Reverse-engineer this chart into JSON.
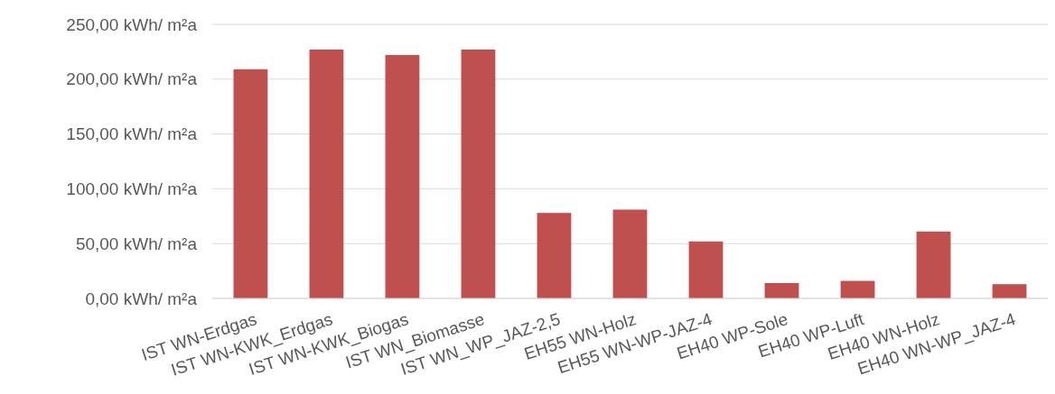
{
  "chart_data": {
    "type": "bar",
    "categories": [
      "IST WN-Erdgas",
      "IST WN-KWK_Erdgas",
      "IST WN-KWK_Biogas",
      "IST WN_Biomasse",
      "IST WN_WP_JAZ-2,5",
      "EH55 WN-Holz",
      "EH55 WN-WP-JAZ-4",
      "EH40 WP-Sole",
      "EH40 WP-Luft",
      "EH40 WN-Holz",
      "EH40 WN-WP_JAZ-4"
    ],
    "series": [
      {
        "color": "#c0504d",
        "values": [
          209,
          227,
          222,
          227,
          78,
          81,
          52,
          14,
          16,
          61,
          13
        ]
      }
    ],
    "ylim": [
      0,
      250
    ],
    "yticks": [
      {
        "value": 0,
        "label": "0,00 kWh/ m²a"
      },
      {
        "value": 50,
        "label": "50,00 kWh/ m²a"
      },
      {
        "value": 100,
        "label": "100,00 kWh/ m²a"
      },
      {
        "value": 150,
        "label": "150,00 kWh/ m²a"
      },
      {
        "value": 200,
        "label": "200,00 kWh/ m²a"
      },
      {
        "value": 250,
        "label": "250,00 kWh/ m²a"
      }
    ],
    "grid": "y"
  }
}
